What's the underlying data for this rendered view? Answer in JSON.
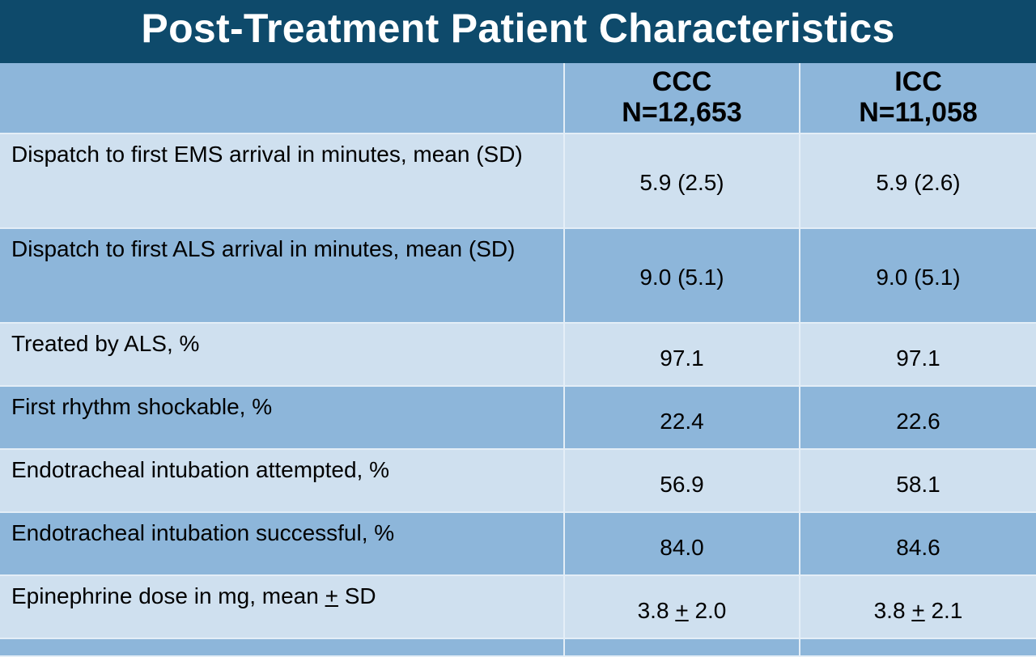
{
  "title": "Post-Treatment Patient Characteristics",
  "table": {
    "columns": [
      {
        "name": "CCC",
        "n": "N=12,653"
      },
      {
        "name": "ICC",
        "n": "N=11,058"
      }
    ],
    "rows": [
      {
        "label": "Dispatch to first EMS arrival in minutes, mean (SD)",
        "ccc": "5.9 (2.5)",
        "icc": "5.9 (2.6)"
      },
      {
        "label": "Dispatch to first ALS arrival in minutes, mean (SD)",
        "ccc": "9.0 (5.1)",
        "icc": "9.0 (5.1)"
      },
      {
        "label": "Treated by ALS, %",
        "ccc": "97.1",
        "icc": "97.1"
      },
      {
        "label": "First rhythm shockable, %",
        "ccc": "22.4",
        "icc": "22.6"
      },
      {
        "label": "Endotracheal intubation attempted, %",
        "ccc": "56.9",
        "icc": "58.1"
      },
      {
        "label": "Endotracheal intubation successful, %",
        "ccc": "84.0",
        "icc": "84.6"
      },
      {
        "label_pre": "Epinephrine dose in mg, mean ",
        "label_pm": "+",
        "label_post": " SD",
        "ccc_pre": "3.8 ",
        "ccc_pm": "+",
        "ccc_post": " 2.0",
        "icc_pre": "3.8 ",
        "icc_pm": "+",
        "icc_post": " 2.1"
      }
    ]
  }
}
